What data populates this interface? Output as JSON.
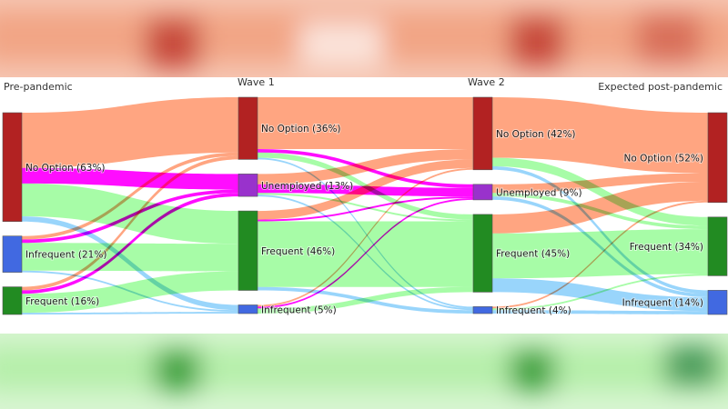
{
  "chart_data": {
    "type": "sankey",
    "title": "",
    "stages": [
      "Pre-pandemic",
      "Wave 1",
      "Wave 2",
      "Expected post-pandemic"
    ],
    "colors": {
      "no_option": "#b22222",
      "unemployed": "#9932cc",
      "frequent": "#228b22",
      "infrequent": "#4169e1"
    },
    "link_colors": {
      "no_option": "#ffa07a",
      "unemployed": "#ff00ff",
      "frequent": "#98fb98",
      "infrequent": "#87cefa"
    },
    "nodes": [
      {
        "id": "s0_no",
        "stage": 0,
        "category": "no_option",
        "label": "No Option (63%)",
        "value": 63
      },
      {
        "id": "s0_inf",
        "stage": 0,
        "category": "infrequent",
        "label": "Infrequent (21%)",
        "value": 21
      },
      {
        "id": "s0_fr",
        "stage": 0,
        "category": "frequent",
        "label": "Frequent (16%)",
        "value": 16
      },
      {
        "id": "s1_no",
        "stage": 1,
        "category": "no_option",
        "label": "No Option (36%)",
        "value": 36
      },
      {
        "id": "s1_un",
        "stage": 1,
        "category": "unemployed",
        "label": "Unemployed (13%)",
        "value": 13
      },
      {
        "id": "s1_fr",
        "stage": 1,
        "category": "frequent",
        "label": "Frequent (46%)",
        "value": 46
      },
      {
        "id": "s1_inf",
        "stage": 1,
        "category": "infrequent",
        "label": "Infrequent (5%)",
        "value": 5
      },
      {
        "id": "s2_no",
        "stage": 2,
        "category": "no_option",
        "label": "No Option (42%)",
        "value": 42
      },
      {
        "id": "s2_un",
        "stage": 2,
        "category": "unemployed",
        "label": "Unemployed (9%)",
        "value": 9
      },
      {
        "id": "s2_fr",
        "stage": 2,
        "category": "frequent",
        "label": "Frequent (45%)",
        "value": 45
      },
      {
        "id": "s2_inf",
        "stage": 2,
        "category": "infrequent",
        "label": "Infrequent (4%)",
        "value": 4
      },
      {
        "id": "s3_no",
        "stage": 3,
        "category": "no_option",
        "label": "No Option (52%)",
        "value": 52
      },
      {
        "id": "s3_fr",
        "stage": 3,
        "category": "frequent",
        "label": "Frequent (34%)",
        "value": 34
      },
      {
        "id": "s3_inf",
        "stage": 3,
        "category": "infrequent",
        "label": "Infrequent (14%)",
        "value": 14
      }
    ],
    "links": [
      {
        "source": "s0_no",
        "target": "s1_no",
        "value": 32
      },
      {
        "source": "s0_no",
        "target": "s1_un",
        "value": 9
      },
      {
        "source": "s0_no",
        "target": "s1_fr",
        "value": 19
      },
      {
        "source": "s0_no",
        "target": "s1_inf",
        "value": 3
      },
      {
        "source": "s0_inf",
        "target": "s1_no",
        "value": 2
      },
      {
        "source": "s0_inf",
        "target": "s1_un",
        "value": 2
      },
      {
        "source": "s0_inf",
        "target": "s1_fr",
        "value": 16
      },
      {
        "source": "s0_inf",
        "target": "s1_inf",
        "value": 1
      },
      {
        "source": "s0_fr",
        "target": "s1_no",
        "value": 2
      },
      {
        "source": "s0_fr",
        "target": "s1_un",
        "value": 2
      },
      {
        "source": "s0_fr",
        "target": "s1_fr",
        "value": 11
      },
      {
        "source": "s0_fr",
        "target": "s1_inf",
        "value": 1
      },
      {
        "source": "s1_no",
        "target": "s2_no",
        "value": 30
      },
      {
        "source": "s1_no",
        "target": "s2_un",
        "value": 2
      },
      {
        "source": "s1_no",
        "target": "s2_fr",
        "value": 3
      },
      {
        "source": "s1_no",
        "target": "s2_inf",
        "value": 1
      },
      {
        "source": "s1_un",
        "target": "s2_no",
        "value": 6
      },
      {
        "source": "s1_un",
        "target": "s2_un",
        "value": 5
      },
      {
        "source": "s1_un",
        "target": "s2_fr",
        "value": 1
      },
      {
        "source": "s1_un",
        "target": "s2_inf",
        "value": 1
      },
      {
        "source": "s1_fr",
        "target": "s2_no",
        "value": 5
      },
      {
        "source": "s1_fr",
        "target": "s2_un",
        "value": 1
      },
      {
        "source": "s1_fr",
        "target": "s2_fr",
        "value": 38
      },
      {
        "source": "s1_fr",
        "target": "s2_inf",
        "value": 2
      },
      {
        "source": "s1_inf",
        "target": "s2_no",
        "value": 1
      },
      {
        "source": "s1_inf",
        "target": "s2_un",
        "value": 1
      },
      {
        "source": "s1_inf",
        "target": "s2_fr",
        "value": 3
      },
      {
        "source": "s2_no",
        "target": "s3_no",
        "value": 35
      },
      {
        "source": "s2_no",
        "target": "s3_fr",
        "value": 5
      },
      {
        "source": "s2_no",
        "target": "s3_inf",
        "value": 2
      },
      {
        "source": "s2_un",
        "target": "s3_no",
        "value": 5
      },
      {
        "source": "s2_un",
        "target": "s3_fr",
        "value": 2
      },
      {
        "source": "s2_un",
        "target": "s3_inf",
        "value": 2
      },
      {
        "source": "s2_fr",
        "target": "s3_no",
        "value": 11
      },
      {
        "source": "s2_fr",
        "target": "s3_fr",
        "value": 26
      },
      {
        "source": "s2_fr",
        "target": "s3_inf",
        "value": 8
      },
      {
        "source": "s2_inf",
        "target": "s3_no",
        "value": 1
      },
      {
        "source": "s2_inf",
        "target": "s3_fr",
        "value": 1
      },
      {
        "source": "s2_inf",
        "target": "s3_inf",
        "value": 2
      }
    ]
  }
}
